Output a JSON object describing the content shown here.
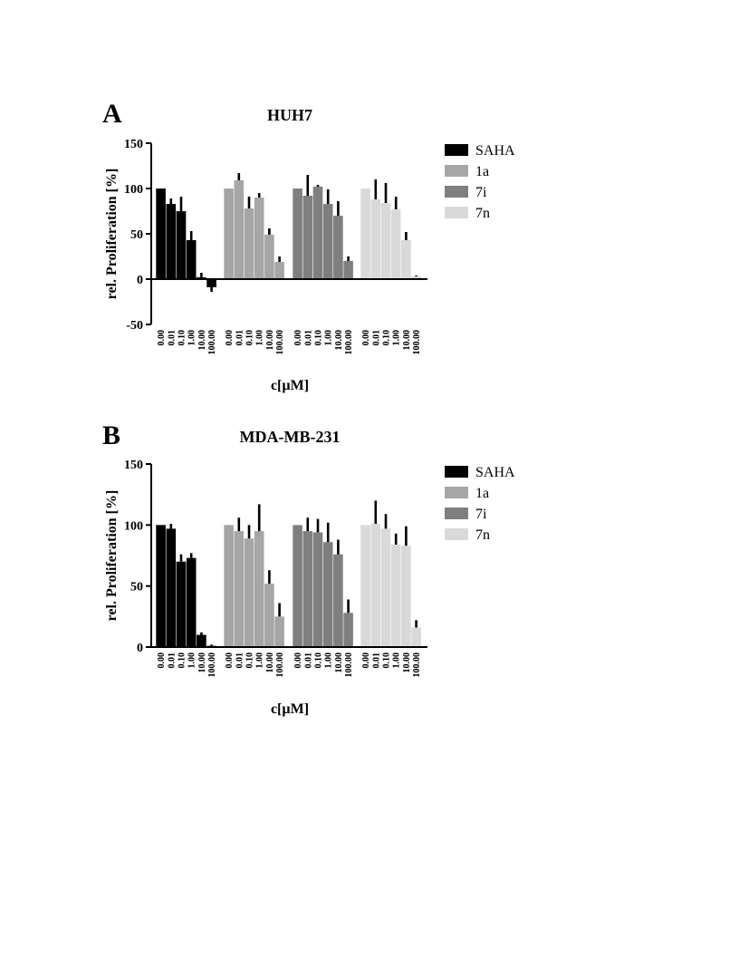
{
  "chart_data": [
    {
      "type": "bar",
      "panel": "A",
      "title": "HUH7",
      "ylabel": "rel. Proliferation [%]",
      "xlabel": "c[µM]",
      "ylim": [
        -50,
        150
      ],
      "yticks": [
        -50,
        0,
        50,
        100,
        150
      ],
      "categories": [
        "0.00",
        "0.01",
        "0.10",
        "1.00",
        "10.00",
        "100.00"
      ],
      "series": [
        {
          "name": "SAHA",
          "color": "#000000",
          "values": [
            100,
            83,
            75,
            43,
            2,
            -9
          ],
          "errors": [
            0,
            6,
            16,
            10,
            5,
            5
          ]
        },
        {
          "name": "1a",
          "color": "#a6a6a6",
          "values": [
            100,
            109,
            78,
            90,
            49,
            19
          ],
          "errors": [
            0,
            8,
            13,
            5,
            7,
            6
          ]
        },
        {
          "name": "7i",
          "color": "#7f7f7f",
          "values": [
            100,
            92,
            102,
            83,
            70,
            20
          ],
          "errors": [
            0,
            23,
            2,
            16,
            16,
            5
          ]
        },
        {
          "name": "7n",
          "color": "#d9d9d9",
          "values": [
            100,
            88,
            84,
            77,
            43,
            3
          ],
          "errors": [
            0,
            22,
            22,
            14,
            9,
            1
          ]
        }
      ],
      "legend_position": "right"
    },
    {
      "type": "bar",
      "panel": "B",
      "title": "MDA-MB-231",
      "ylabel": "rel. Proliferation [%]",
      "xlabel": "c[µM]",
      "ylim": [
        0,
        150
      ],
      "yticks": [
        0,
        50,
        100,
        150
      ],
      "categories": [
        "0.00",
        "0.01",
        "0.10",
        "1.00",
        "10.00",
        "100.00"
      ],
      "series": [
        {
          "name": "SAHA",
          "color": "#000000",
          "values": [
            100,
            97,
            70,
            73,
            10,
            1
          ],
          "errors": [
            0,
            4,
            6,
            4,
            2,
            1
          ]
        },
        {
          "name": "1a",
          "color": "#a6a6a6",
          "values": [
            100,
            95,
            89,
            95,
            52,
            25
          ],
          "errors": [
            0,
            11,
            11,
            22,
            11,
            11
          ]
        },
        {
          "name": "7i",
          "color": "#7f7f7f",
          "values": [
            100,
            95,
            94,
            86,
            76,
            28
          ],
          "errors": [
            0,
            11,
            11,
            16,
            12,
            11
          ]
        },
        {
          "name": "7n",
          "color": "#d9d9d9",
          "values": [
            100,
            101,
            97,
            84,
            83,
            16
          ],
          "errors": [
            0,
            19,
            12,
            9,
            16,
            6
          ]
        }
      ],
      "legend_position": "right"
    }
  ]
}
